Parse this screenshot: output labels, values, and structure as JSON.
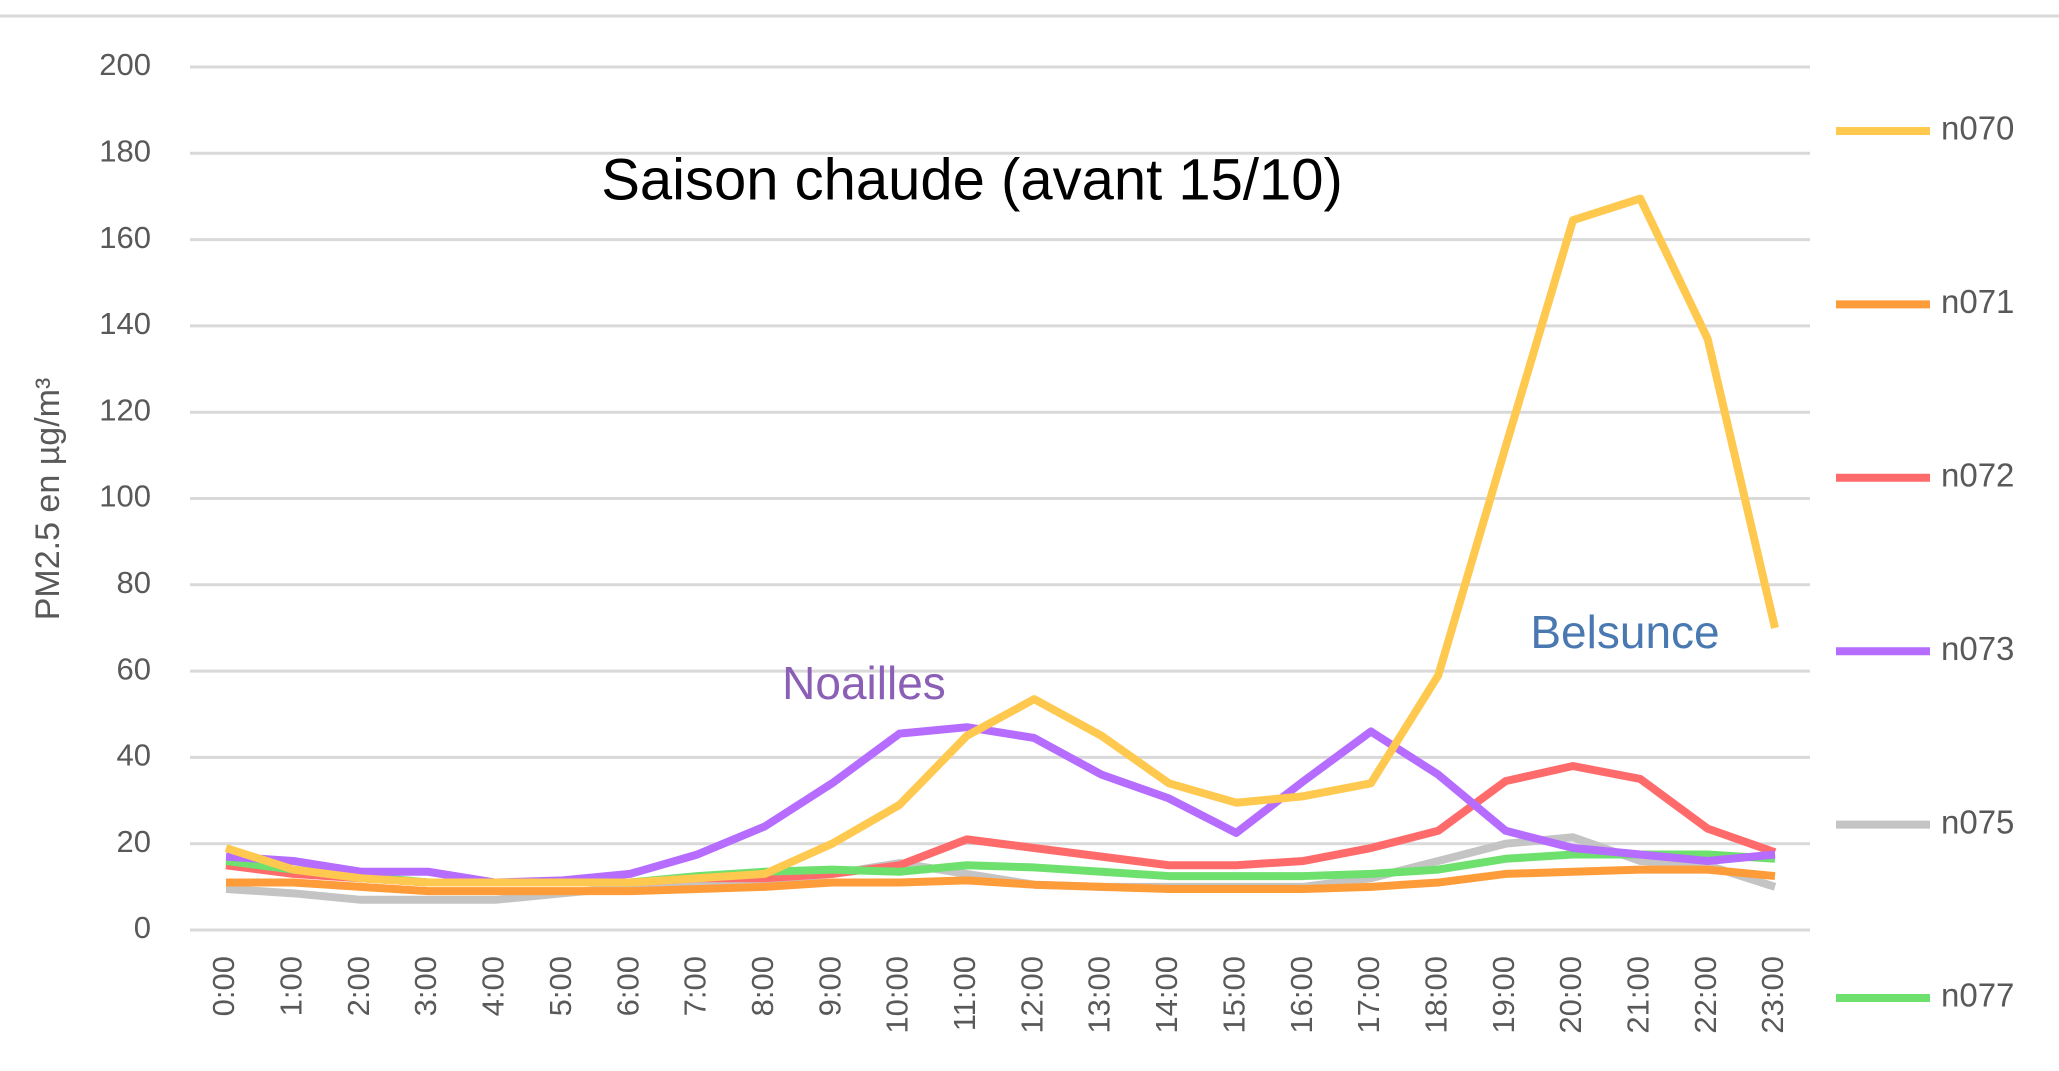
{
  "chart_data": {
    "type": "line",
    "title": "Saison chaude (avant 15/10)",
    "y_label": "PM2.5 en µg/m³",
    "annotations": [
      "Noailles",
      "Belsunce"
    ],
    "categories": [
      "0:00",
      "1:00",
      "2:00",
      "3:00",
      "4:00",
      "5:00",
      "6:00",
      "7:00",
      "8:00",
      "9:00",
      "10:00",
      "11:00",
      "12:00",
      "13:00",
      "14:00",
      "15:00",
      "16:00",
      "17:00",
      "18:00",
      "19:00",
      "20:00",
      "21:00",
      "22:00",
      "23:00"
    ],
    "series": [
      {
        "name": "n075",
        "color": "#c4c4c4",
        "values": [
          9.5,
          8.5,
          7,
          7,
          7,
          8.5,
          10,
          11,
          11,
          13,
          15.5,
          13,
          10.5,
          10,
          10,
          10,
          10,
          12,
          16,
          20,
          21.5,
          16,
          15,
          10
        ]
      },
      {
        "name": "n071",
        "color": "#ff9c3a",
        "values": [
          11,
          11,
          10,
          9,
          9,
          9,
          9,
          9.5,
          10,
          11,
          11,
          11.5,
          10.5,
          10,
          9.5,
          9.5,
          9.5,
          10,
          11,
          13,
          13.5,
          14,
          14,
          12.5
        ]
      },
      {
        "name": "n072",
        "color": "#ff6b6b",
        "values": [
          15,
          13,
          12,
          11,
          11,
          11,
          11,
          12,
          12,
          13,
          15,
          21,
          19,
          17,
          15,
          15,
          16,
          19,
          23,
          34.5,
          38,
          35,
          23.5,
          18
        ]
      },
      {
        "name": "n077",
        "color": "#6ee06e",
        "values": [
          16,
          14,
          12.5,
          11,
          11,
          11,
          11,
          12.5,
          13.5,
          14,
          13.5,
          15,
          14.5,
          13.5,
          12.5,
          12.5,
          12.5,
          13,
          14,
          16.5,
          17.5,
          17.5,
          17.5,
          16.5
        ]
      },
      {
        "name": "n073",
        "color": "#b56cff",
        "values": [
          17,
          16,
          13.5,
          13.5,
          11,
          11.5,
          13,
          17.5,
          24,
          34,
          45.5,
          47,
          44.5,
          36,
          30.5,
          22.5,
          34.5,
          46,
          36,
          23,
          19,
          17.5,
          16,
          17.5
        ]
      },
      {
        "name": "n070",
        "color": "#ffc84e",
        "values": [
          19,
          14,
          12,
          11,
          11,
          11,
          11,
          12,
          13,
          20,
          29,
          45,
          53.5,
          45,
          34,
          29.5,
          31,
          34,
          59,
          112,
          164.5,
          169.5,
          137,
          70
        ]
      }
    ],
    "legend_order": [
      "n070",
      "n071",
      "n072",
      "n073",
      "n075",
      "n077"
    ],
    "ylim": [
      0,
      200
    ],
    "yticks": [
      0,
      20,
      40,
      60,
      80,
      100,
      120,
      140,
      160,
      180,
      200
    ],
    "grid": true,
    "legend": "right"
  }
}
